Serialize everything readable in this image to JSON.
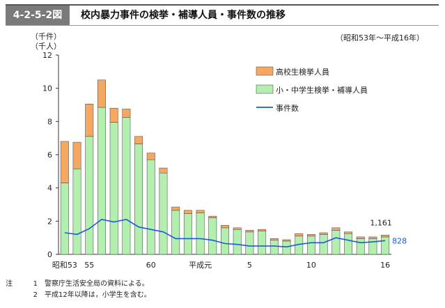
{
  "header": {
    "figure_no": "4-2-5-2図",
    "title": "校内暴力事件の検挙・補導人員・事件数の推移",
    "period": "（昭和53年～平成16年）"
  },
  "chart_data": {
    "type": "bar",
    "stacked": true,
    "title": "校内暴力事件の検挙・補導人員・事件数の推移",
    "ylabel_lines": [
      "（千件）",
      "（千人）"
    ],
    "ylim": [
      0,
      12
    ],
    "yticks": [
      0,
      2,
      4,
      6,
      8,
      10,
      12
    ],
    "categories": [
      "昭和53",
      "54",
      "55",
      "56",
      "57",
      "58",
      "59",
      "60",
      "61",
      "62",
      "63",
      "平成元",
      "2",
      "3",
      "4",
      "5",
      "6",
      "7",
      "8",
      "9",
      "10",
      "11",
      "12",
      "13",
      "14",
      "15",
      "16"
    ],
    "x_tick_labels": [
      {
        "index": 0,
        "label": "昭和53"
      },
      {
        "index": 2,
        "label": "55"
      },
      {
        "index": 7,
        "label": "60"
      },
      {
        "index": 11,
        "label": "平成元"
      },
      {
        "index": 15,
        "label": "5"
      },
      {
        "index": 20,
        "label": "10"
      },
      {
        "index": 26,
        "label": "16"
      }
    ],
    "series": [
      {
        "name": "小・中学生検挙・補導人員",
        "kind": "bar",
        "color": "#b3f0b0",
        "values": [
          4.3,
          5.15,
          7.1,
          8.85,
          7.95,
          8.25,
          6.65,
          5.7,
          4.9,
          2.65,
          2.45,
          2.5,
          2.2,
          1.6,
          1.5,
          1.35,
          1.4,
          0.85,
          0.8,
          1.1,
          1.1,
          1.2,
          1.45,
          1.25,
          0.95,
          0.95,
          1.05
        ]
      },
      {
        "name": "高校生検挙人員",
        "kind": "bar",
        "color": "#f6a860",
        "values": [
          2.5,
          1.6,
          1.95,
          1.65,
          0.85,
          0.5,
          0.45,
          0.4,
          0.3,
          0.2,
          0.2,
          0.15,
          0.1,
          0.15,
          0.1,
          0.1,
          0.1,
          0.1,
          0.08,
          0.15,
          0.1,
          0.1,
          0.15,
          0.1,
          0.1,
          0.1,
          0.11
        ]
      },
      {
        "name": "事件数",
        "kind": "line",
        "color": "#1a5bd8",
        "values": [
          1.3,
          1.2,
          1.55,
          2.1,
          1.95,
          2.1,
          1.65,
          1.5,
          1.35,
          0.95,
          0.95,
          0.95,
          0.85,
          0.65,
          0.6,
          0.5,
          0.5,
          0.5,
          0.45,
          0.6,
          0.7,
          0.7,
          1.0,
          0.85,
          0.7,
          0.75,
          0.828
        ]
      }
    ],
    "annotations": [
      {
        "label": "1,161",
        "target": "total_last",
        "value": 1.161
      },
      {
        "label": "828",
        "target": "line_last",
        "value": 0.828
      }
    ],
    "legend": {
      "position": "top-right"
    },
    "grid": false
  },
  "notes": {
    "head": "注",
    "items": [
      {
        "num": "1",
        "text": "警察庁生活安全局の資料による。"
      },
      {
        "num": "2",
        "text": "平成12年以降は，小学生を含む。"
      }
    ]
  }
}
